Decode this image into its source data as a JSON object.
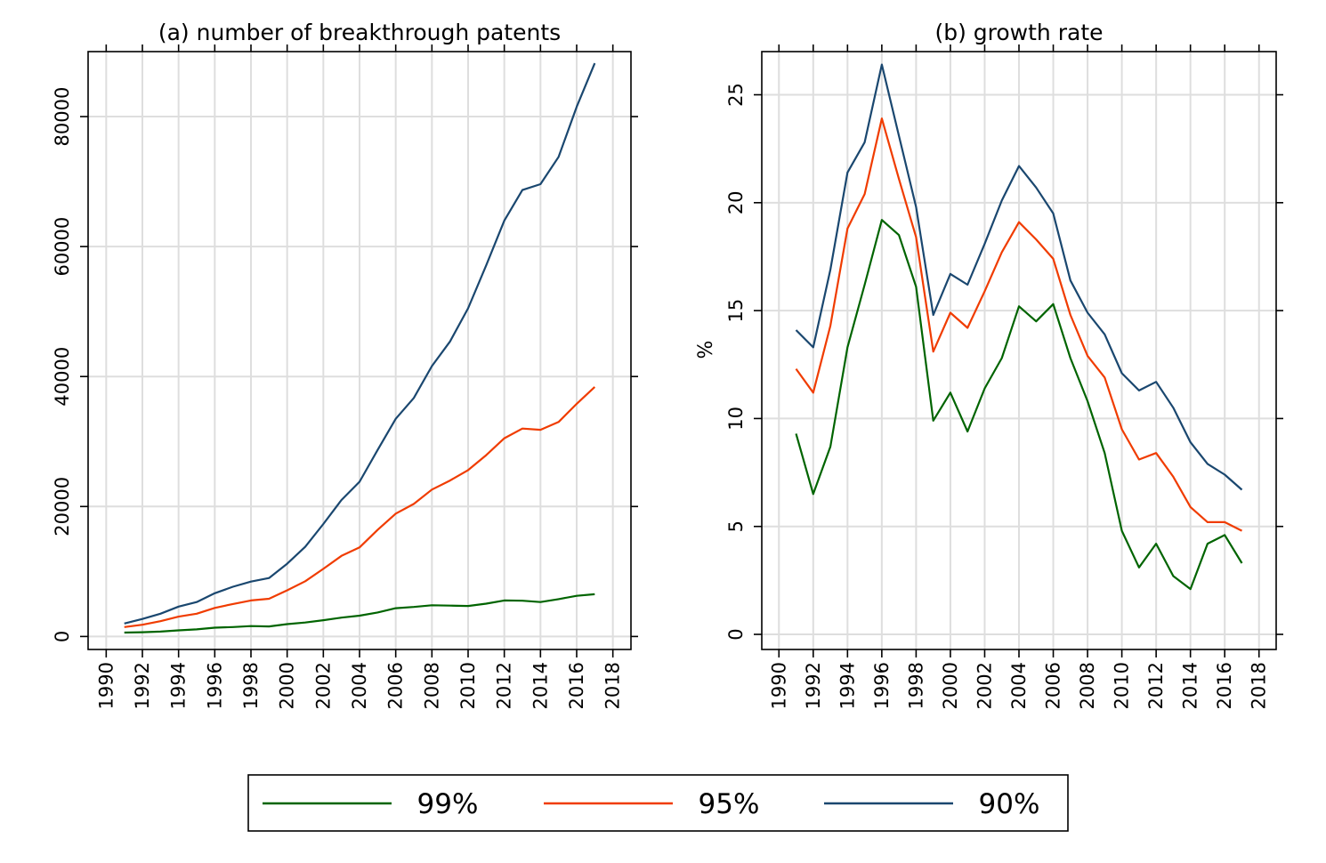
{
  "chart_data": [
    {
      "type": "line",
      "title": "(a) number of breakthrough patents",
      "xlabel": "",
      "ylabel": "",
      "xlim": [
        1989,
        2019
      ],
      "ylim": [
        -2000,
        90000
      ],
      "xticks": [
        1990,
        1992,
        1994,
        1996,
        1998,
        2000,
        2002,
        2004,
        2006,
        2008,
        2010,
        2012,
        2014,
        2016,
        2018
      ],
      "xtick_labels": [
        "1990",
        "1992",
        "1994",
        "1996",
        "1998",
        "2000",
        "2002",
        "2004",
        "2006",
        "2008",
        "2010",
        "2012",
        "2014",
        "2016",
        "2018"
      ],
      "yticks": [
        0,
        20000,
        40000,
        60000,
        80000
      ],
      "ytick_labels": [
        "0",
        "20000",
        "40000",
        "60000",
        "80000"
      ],
      "grid": true,
      "x": [
        1991,
        1992,
        1993,
        1994,
        1995,
        1996,
        1997,
        1998,
        1999,
        2000,
        2001,
        2002,
        2003,
        2004,
        2005,
        2006,
        2007,
        2008,
        2009,
        2010,
        2011,
        2012,
        2013,
        2014,
        2015,
        2016,
        2017
      ],
      "series": [
        {
          "name": "99%",
          "color": "#006400",
          "values": [
            600,
            650,
            750,
            950,
            1100,
            1350,
            1450,
            1600,
            1550,
            1900,
            2150,
            2500,
            2900,
            3200,
            3700,
            4350,
            4550,
            4800,
            4750,
            4700,
            5050,
            5550,
            5500,
            5300,
            5750,
            6250,
            6500
          ]
        },
        {
          "name": "95%",
          "color": "#f03c00",
          "values": [
            1450,
            1800,
            2350,
            3050,
            3500,
            4400,
            5000,
            5550,
            5800,
            7100,
            8500,
            10400,
            12400,
            13700,
            16400,
            18900,
            20400,
            22600,
            24000,
            25600,
            27900,
            30500,
            32000,
            31800,
            33000,
            35800,
            38400
          ]
        },
        {
          "name": "90%",
          "color": "#1a476f",
          "values": [
            2000,
            2700,
            3500,
            4600,
            5300,
            6650,
            7650,
            8450,
            9000,
            11200,
            13800,
            17300,
            21000,
            23800,
            28700,
            33500,
            36700,
            41600,
            45400,
            50500,
            57100,
            64000,
            68700,
            69600,
            73800,
            81500,
            88200
          ]
        }
      ]
    },
    {
      "type": "line",
      "title": "(b) growth rate",
      "xlabel": "",
      "ylabel": "%",
      "xlim": [
        1989,
        2019
      ],
      "ylim": [
        -0.7,
        27
      ],
      "xticks": [
        1990,
        1992,
        1994,
        1996,
        1998,
        2000,
        2002,
        2004,
        2006,
        2008,
        2010,
        2012,
        2014,
        2016,
        2018
      ],
      "xtick_labels": [
        "1990",
        "1992",
        "1994",
        "1996",
        "1998",
        "2000",
        "2002",
        "2004",
        "2006",
        "2008",
        "2010",
        "2012",
        "2014",
        "2016",
        "2018"
      ],
      "yticks": [
        0,
        5,
        10,
        15,
        20,
        25
      ],
      "ytick_labels": [
        "0",
        "5",
        "10",
        "15",
        "20",
        "25"
      ],
      "grid": true,
      "x": [
        1991,
        1992,
        1993,
        1994,
        1995,
        1996,
        1997,
        1998,
        1999,
        2000,
        2001,
        2002,
        2003,
        2004,
        2005,
        2006,
        2007,
        2008,
        2009,
        2010,
        2011,
        2012,
        2013,
        2014,
        2015,
        2016,
        2017
      ],
      "series": [
        {
          "name": "99%",
          "color": "#006400",
          "values": [
            9.3,
            6.5,
            8.7,
            13.3,
            16.2,
            19.2,
            18.5,
            16.1,
            9.9,
            11.2,
            9.4,
            11.4,
            12.8,
            15.2,
            14.5,
            15.3,
            12.8,
            10.8,
            8.4,
            4.8,
            3.1,
            4.2,
            2.7,
            2.1,
            4.2,
            4.6,
            3.3
          ]
        },
        {
          "name": "95%",
          "color": "#f03c00",
          "values": [
            12.3,
            11.2,
            14.3,
            18.8,
            20.4,
            23.9,
            21.1,
            18.4,
            13.1,
            14.9,
            14.2,
            15.9,
            17.7,
            19.1,
            18.3,
            17.4,
            14.8,
            12.9,
            11.9,
            9.5,
            8.1,
            8.4,
            7.3,
            5.9,
            5.2,
            5.2,
            4.8
          ]
        },
        {
          "name": "90%",
          "color": "#1a476f",
          "values": [
            14.1,
            13.3,
            16.9,
            21.4,
            22.8,
            26.4,
            23.1,
            19.8,
            14.8,
            16.7,
            16.2,
            18.1,
            20.1,
            21.7,
            20.7,
            19.5,
            16.4,
            14.9,
            13.9,
            12.1,
            11.3,
            11.7,
            10.5,
            8.9,
            7.9,
            7.4,
            6.7
          ]
        }
      ]
    }
  ],
  "legend": {
    "placement": "bottom-center",
    "items": [
      {
        "label": "99%",
        "color": "#006400"
      },
      {
        "label": "95%",
        "color": "#f03c00"
      },
      {
        "label": "90%",
        "color": "#1a476f"
      }
    ]
  }
}
